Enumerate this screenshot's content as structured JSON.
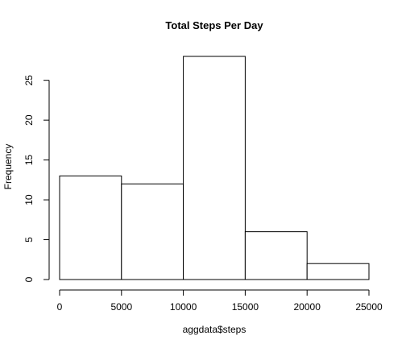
{
  "chart_data": {
    "type": "bar",
    "title": "Total Steps Per Day",
    "xlabel": "aggdata$steps",
    "ylabel": "Frequency",
    "bins": [
      {
        "start": 0,
        "end": 5000,
        "count": 13
      },
      {
        "start": 5000,
        "end": 10000,
        "count": 12
      },
      {
        "start": 10000,
        "end": 15000,
        "count": 28
      },
      {
        "start": 15000,
        "end": 20000,
        "count": 6
      },
      {
        "start": 20000,
        "end": 25000,
        "count": 2
      }
    ],
    "xlim": [
      0,
      25000
    ],
    "ylim": [
      0,
      28
    ],
    "x_ticks": [
      "0",
      "5000",
      "10000",
      "15000",
      "20000",
      "25000"
    ],
    "y_ticks": [
      "0",
      "5",
      "10",
      "15",
      "20",
      "25"
    ],
    "bar_fill": "#ffffff",
    "bar_stroke": "#000000",
    "grid": false,
    "legend": "none"
  }
}
